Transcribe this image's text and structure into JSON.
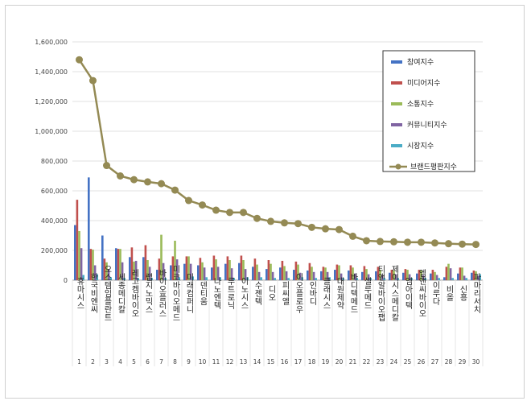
{
  "chart_data": {
    "type": "bar",
    "ylim": [
      0,
      1600000
    ],
    "yticks": [
      "0",
      "200,000",
      "400,000",
      "600,000",
      "800,000",
      "1,000,000",
      "1,200,000",
      "1,400,000",
      "1,600,000"
    ],
    "grid": true,
    "legend_position": "top-right",
    "numbers": [
      "1",
      "2",
      "3",
      "4",
      "5",
      "6",
      "7",
      "8",
      "9",
      "10",
      "11",
      "12",
      "13",
      "14",
      "15",
      "16",
      "17",
      "18",
      "19",
      "20",
      "21",
      "22",
      "23",
      "24",
      "25",
      "26",
      "27",
      "28",
      "29",
      "30"
    ],
    "categories": [
      "휴마시스",
      "한국비엔씨",
      "오스템임플란트",
      "세종메디칼",
      "레고켐바이오",
      "랩지노믹스",
      "바이오플러스",
      "미코바이오메드",
      "미래컴퍼니",
      "덴티움",
      "나노엔텍",
      "루트로닉",
      "이노시스",
      "수젠텍",
      "디오",
      "피씨엘",
      "이오플로우",
      "인바디",
      "클래시스",
      "대원제약",
      "바디텍메드",
      "셀루메드",
      "티앤알바이오팹",
      "제이시스메디칼",
      "엠아이텍",
      "엠앤씨바이오",
      "이루다",
      "비올",
      "신흥",
      "파마리서치"
    ],
    "series": [
      {
        "name": "참여지수",
        "color": "#4472c4",
        "values": [
          370000,
          690000,
          300000,
          215000,
          155000,
          155000,
          70000,
          100000,
          110000,
          100000,
          85000,
          110000,
          115000,
          90000,
          75000,
          85000,
          70000,
          65000,
          60000,
          70000,
          65000,
          55000,
          60000,
          50000,
          50000,
          45000,
          45000,
          20000,
          45000,
          50000
        ]
      },
      {
        "name": "미디어지수",
        "color": "#c0504d",
        "values": [
          540000,
          210000,
          145000,
          210000,
          220000,
          235000,
          145000,
          160000,
          160000,
          150000,
          165000,
          160000,
          165000,
          145000,
          135000,
          130000,
          125000,
          115000,
          90000,
          105000,
          100000,
          95000,
          90000,
          70000,
          75000,
          70000,
          70000,
          90000,
          85000,
          65000
        ]
      },
      {
        "name": "소통지수",
        "color": "#9bbb59",
        "values": [
          330000,
          205000,
          120000,
          210000,
          125000,
          135000,
          305000,
          265000,
          160000,
          120000,
          140000,
          135000,
          135000,
          105000,
          110000,
          95000,
          105000,
          90000,
          85000,
          100000,
          85000,
          75000,
          70000,
          65000,
          70000,
          65000,
          55000,
          110000,
          85000,
          60000
        ]
      },
      {
        "name": "커뮤니티지수",
        "color": "#8064a2",
        "values": [
          215000,
          100000,
          75000,
          120000,
          130000,
          90000,
          115000,
          140000,
          110000,
          85000,
          90000,
          80000,
          75000,
          55000,
          55000,
          60000,
          50000,
          55000,
          55000,
          45000,
          45000,
          40000,
          35000,
          40000,
          40000,
          35000,
          35000,
          80000,
          30000,
          30000
        ]
      },
      {
        "name": "시장지수",
        "color": "#4bacc6",
        "values": [
          35000,
          40000,
          20000,
          15000,
          15000,
          15000,
          15000,
          20000,
          25000,
          20000,
          20000,
          15000,
          20000,
          20000,
          15000,
          15000,
          20000,
          15000,
          20000,
          15000,
          15000,
          15000,
          15000,
          15000,
          15000,
          15000,
          15000,
          15000,
          15000,
          40000
        ]
      }
    ],
    "line": {
      "name": "브랜드평판지수",
      "color": "#948a54",
      "values": [
        1480000,
        1340000,
        770000,
        700000,
        675000,
        660000,
        648000,
        605000,
        535000,
        505000,
        470000,
        455000,
        455000,
        415000,
        395000,
        385000,
        380000,
        355000,
        345000,
        340000,
        295000,
        265000,
        260000,
        258000,
        255000,
        255000,
        250000,
        245000,
        242000,
        240000
      ]
    }
  }
}
